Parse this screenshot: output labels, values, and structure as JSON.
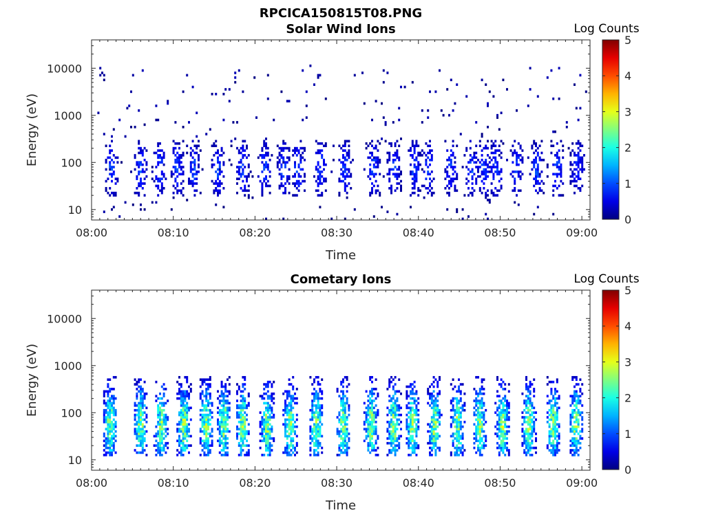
{
  "figure": {
    "title": "RPCICA150815T08.PNG"
  },
  "chart_data": [
    {
      "type": "heatmap",
      "title": "Solar Wind Ions",
      "xlabel": "Time",
      "ylabel": "Energy (eV)",
      "x_range": [
        "08:00",
        "09:01"
      ],
      "x_ticks": [
        "08:00",
        "08:10",
        "08:20",
        "08:30",
        "08:40",
        "08:50",
        "09:00"
      ],
      "y_scale": "log",
      "y_range": [
        6,
        40000
      ],
      "y_ticks": [
        "10",
        "100",
        "1000",
        "10000"
      ],
      "y_tick_values": [
        10,
        100,
        1000,
        10000
      ],
      "colorbar": {
        "label": "Log Counts",
        "range": [
          0,
          5
        ],
        "ticks": [
          "0",
          "1",
          "2",
          "3",
          "4",
          "5"
        ],
        "colormap": "jet"
      },
      "pattern": {
        "description_type": "bursts",
        "burst_centers_min": [
          2.5,
          6.0,
          8.3,
          10.5,
          12.5,
          15.5,
          18.5,
          21.2,
          23.5,
          25.3,
          28.0,
          31.0,
          34.5,
          37.0,
          39.5,
          41.2,
          44.0,
          46.5,
          48.0,
          49.5,
          52.0,
          54.5,
          57.0,
          59.5
        ],
        "burst_energy_range_eV": [
          18,
          300
        ],
        "burst_peak_log_counts": 1.0,
        "scatter_energy_range_eV": [
          50,
          12000
        ],
        "scatter_log_counts": 0.3
      }
    },
    {
      "type": "heatmap",
      "title": "Cometary Ions",
      "xlabel": "Time",
      "ylabel": "Energy (eV)",
      "x_range": [
        "08:00",
        "09:01"
      ],
      "x_ticks": [
        "08:00",
        "08:10",
        "08:20",
        "08:30",
        "08:40",
        "08:50",
        "09:00"
      ],
      "y_scale": "log",
      "y_range": [
        6,
        40000
      ],
      "y_ticks": [
        "10",
        "100",
        "1000",
        "10000"
      ],
      "y_tick_values": [
        10,
        100,
        1000,
        10000
      ],
      "colorbar": {
        "label": "Log Counts",
        "range": [
          0,
          5
        ],
        "ticks": [
          "0",
          "1",
          "2",
          "3",
          "4",
          "5"
        ],
        "colormap": "jet"
      },
      "pattern": {
        "description_type": "bursts",
        "burst_centers_min": [
          2.3,
          6.0,
          8.5,
          11.3,
          14.0,
          16.2,
          18.5,
          21.5,
          24.3,
          27.5,
          30.8,
          34.2,
          37.0,
          39.3,
          42.0,
          44.8,
          47.5,
          50.3,
          53.5,
          56.5,
          59.3
        ],
        "burst_energy_range_eV": [
          12,
          600
        ],
        "burst_peak_energy_eV": 55,
        "burst_peak_log_counts": 2.8
      }
    }
  ]
}
